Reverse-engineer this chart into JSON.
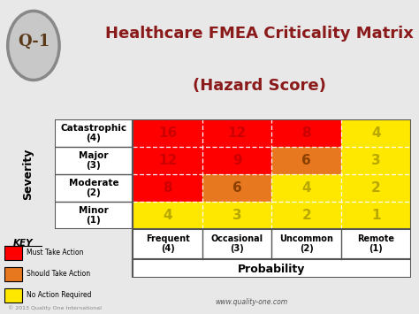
{
  "title_line1": "Healthcare FMEA Criticality Matrix",
  "title_line2": "(Hazard Score)",
  "title_color": "#8B1A1A",
  "background_color": "#E8E8E8",
  "matrix_values": [
    [
      16,
      12,
      8,
      4
    ],
    [
      12,
      9,
      6,
      3
    ],
    [
      8,
      6,
      4,
      2
    ],
    [
      4,
      3,
      2,
      1
    ]
  ],
  "cell_colors": [
    [
      "#FF0000",
      "#FF0000",
      "#FF0000",
      "#FFE800"
    ],
    [
      "#FF0000",
      "#FF0000",
      "#E87820",
      "#FFE800"
    ],
    [
      "#FF0000",
      "#E87820",
      "#FFE800",
      "#FFE800"
    ],
    [
      "#FFE800",
      "#FFE800",
      "#FFE800",
      "#FFE800"
    ]
  ],
  "number_colors": [
    [
      "#CC0000",
      "#CC0000",
      "#CC0000",
      "#B8A800"
    ],
    [
      "#CC0000",
      "#CC0000",
      "#8B4000",
      "#B8A800"
    ],
    [
      "#CC0000",
      "#8B4000",
      "#B8A800",
      "#B8A800"
    ],
    [
      "#B8A800",
      "#B8A800",
      "#B8A800",
      "#B8A800"
    ]
  ],
  "row_labels": [
    "Catastrophic\n(4)",
    "Major\n(3)",
    "Moderate\n(2)",
    "Minor\n(1)"
  ],
  "col_labels": [
    "Frequent\n(4)",
    "Occasional\n(3)",
    "Uncommon\n(2)",
    "Remote\n(1)"
  ],
  "severity_label": "Severity",
  "probability_label": "Probability",
  "key_title": "KEY",
  "key_items": [
    {
      "color": "#FF0000",
      "label": "Must Take Action"
    },
    {
      "color": "#E87820",
      "label": "Should Take Action"
    },
    {
      "color": "#FFE800",
      "label": "No Action Required"
    }
  ],
  "website": "www.quality-one.com",
  "copyright": "© 2013 Quality One International"
}
